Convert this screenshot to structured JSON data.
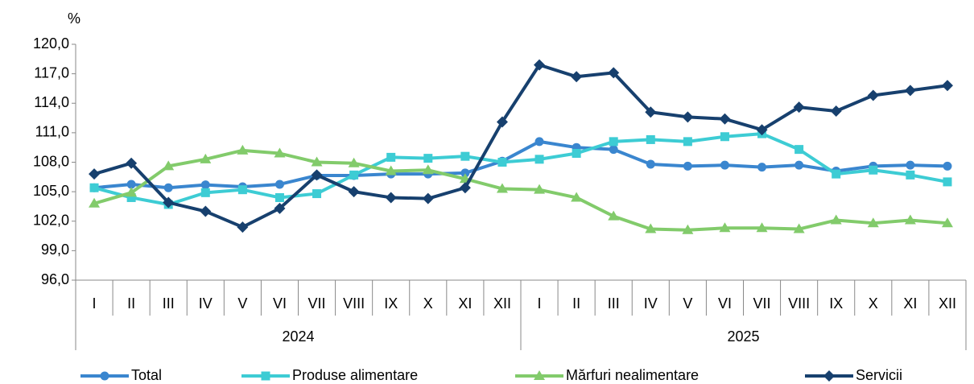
{
  "chart_data": {
    "type": "line",
    "y_axis_label": "%",
    "categories": [
      "I",
      "II",
      "III",
      "IV",
      "V",
      "VI",
      "VII",
      "VIII",
      "IX",
      "X",
      "XI",
      "XII",
      "I",
      "II",
      "III",
      "IV",
      "V",
      "VI",
      "VII",
      "VIII",
      "IX",
      "X",
      "XI",
      "XII"
    ],
    "groups": [
      "2024",
      "2025"
    ],
    "ylim": [
      96,
      120
    ],
    "yticks": [
      {
        "value": 96,
        "label": "96,0"
      },
      {
        "value": 99,
        "label": "99,0"
      },
      {
        "value": 102,
        "label": "102,0"
      },
      {
        "value": 105,
        "label": "105,0"
      },
      {
        "value": 108,
        "label": "108,0"
      },
      {
        "value": 111,
        "label": "111,0"
      },
      {
        "value": 114,
        "label": "114,0"
      },
      {
        "value": 117,
        "label": "117,0"
      },
      {
        "value": 120,
        "label": "120,0"
      }
    ],
    "grid": false,
    "legend": "bottom",
    "series": [
      {
        "name": "Total",
        "color": "#3a86cf",
        "marker": "circle",
        "values": [
          105.4,
          105.75,
          105.4,
          105.7,
          105.5,
          105.75,
          106.65,
          106.65,
          106.8,
          106.8,
          106.9,
          108.1,
          110.1,
          109.5,
          109.3,
          107.8,
          107.6,
          107.7,
          107.5,
          107.7,
          107.1,
          107.6,
          107.7,
          107.6
        ]
      },
      {
        "name": "Produse alimentare",
        "color": "#3dccd4",
        "marker": "square",
        "values": [
          105.4,
          104.4,
          103.7,
          104.9,
          105.2,
          104.4,
          104.8,
          106.7,
          108.5,
          108.4,
          108.6,
          108.0,
          108.3,
          108.9,
          110.1,
          110.3,
          110.1,
          110.6,
          110.9,
          109.3,
          106.8,
          107.2,
          106.7,
          106.0
        ]
      },
      {
        "name": "Mărfuri nealimentare",
        "color": "#82cb6b",
        "marker": "triangle",
        "values": [
          103.8,
          104.9,
          107.6,
          108.3,
          109.2,
          108.9,
          108.0,
          107.9,
          107.1,
          107.2,
          106.3,
          105.3,
          105.2,
          104.4,
          102.5,
          101.2,
          101.1,
          101.3,
          101.3,
          101.2,
          102.1,
          101.8,
          102.1,
          101.8
        ]
      },
      {
        "name": "Servicii",
        "color": "#17406e",
        "marker": "diamond",
        "values": [
          106.8,
          107.9,
          103.9,
          103.0,
          101.4,
          103.3,
          106.7,
          105.0,
          104.4,
          104.3,
          105.4,
          112.1,
          117.9,
          116.7,
          117.1,
          113.1,
          112.6,
          112.4,
          111.3,
          113.6,
          113.2,
          114.8,
          115.3,
          115.8
        ]
      }
    ]
  }
}
